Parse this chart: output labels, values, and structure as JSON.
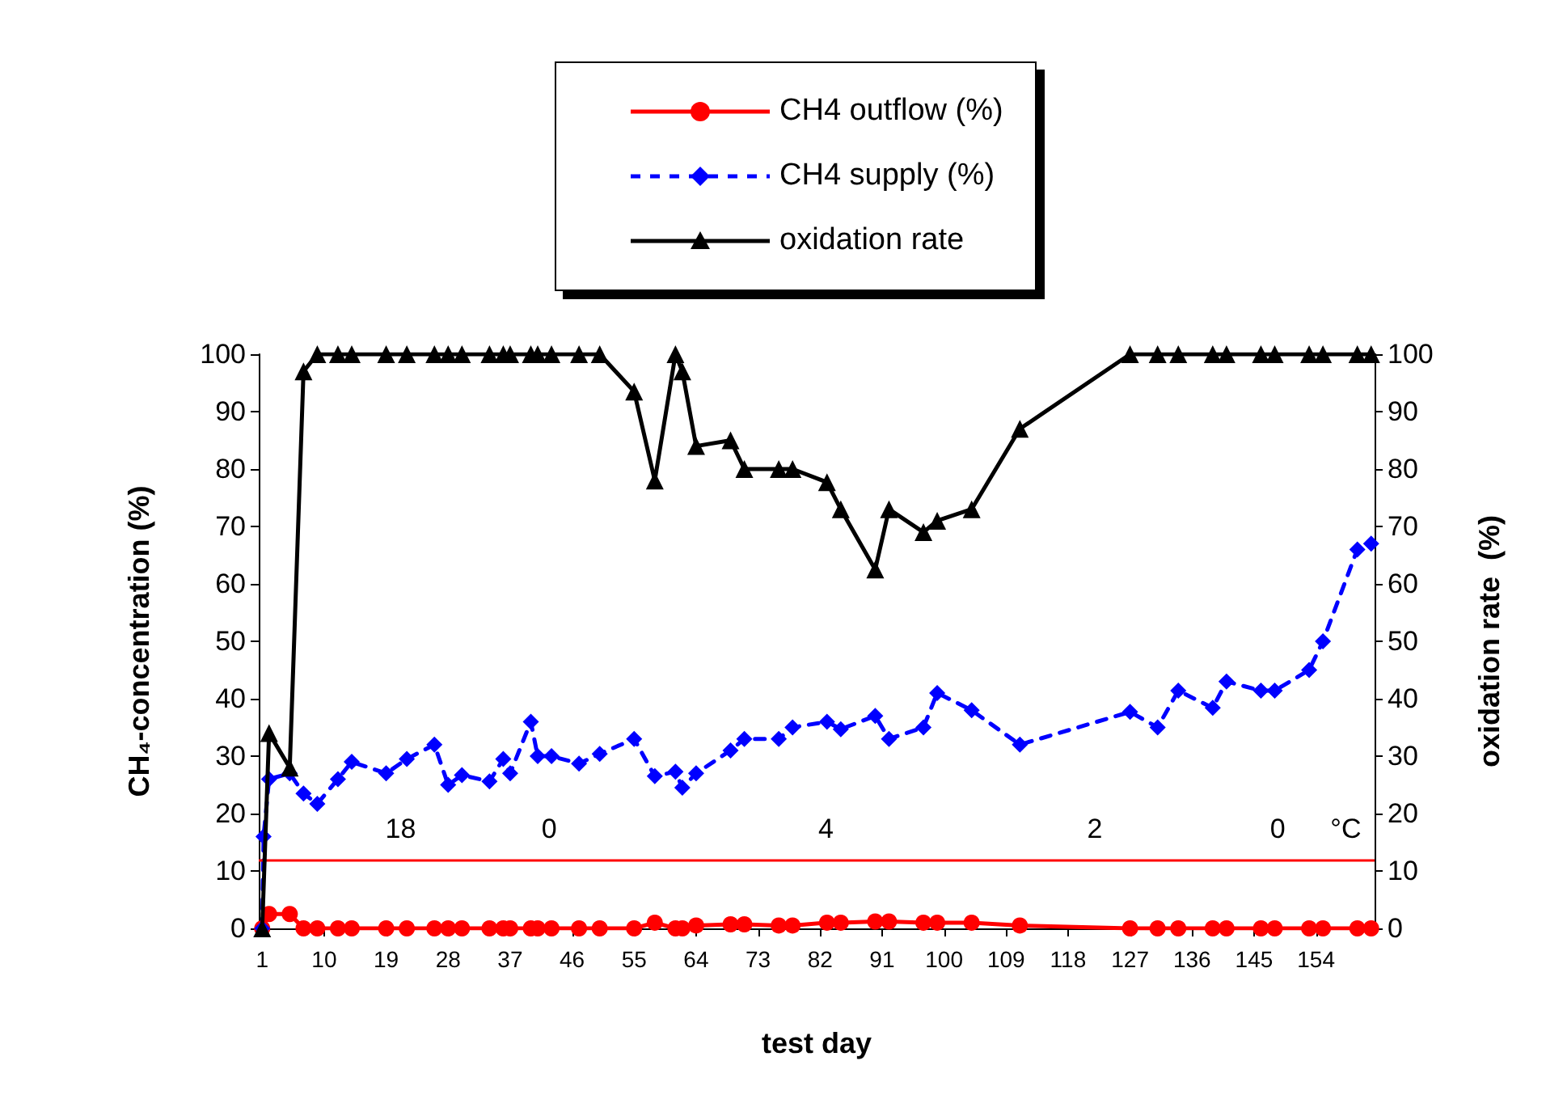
{
  "chart_data": {
    "type": "line",
    "xlabel": "test day",
    "ylabel": "CH₄-concentration (%)",
    "y2label": "oxidation rate  (%)",
    "xlim": [
      0.5,
      162.5
    ],
    "xticks": [
      1,
      10,
      19,
      28,
      37,
      46,
      55,
      64,
      73,
      82,
      91,
      100,
      109,
      118,
      127,
      136,
      145,
      154
    ],
    "ylim": [
      0,
      100
    ],
    "yticks": [
      0,
      10,
      20,
      30,
      40,
      50,
      60,
      70,
      80,
      90,
      100
    ],
    "y2lim": [
      0,
      100
    ],
    "y2ticks": [
      0,
      10,
      20,
      30,
      40,
      50,
      60,
      70,
      80,
      90,
      100
    ],
    "grid": false,
    "legend": "top",
    "series": [
      {
        "name": "CH4 outflow (%)",
        "color": "#ff0000",
        "marker": "circle",
        "line_style": "solid",
        "x": [
          1,
          2,
          5,
          7,
          9,
          12,
          14,
          19,
          22,
          26,
          28,
          30,
          34,
          36,
          37,
          40,
          41,
          43,
          47,
          50,
          55,
          58,
          61,
          62,
          64,
          69,
          71,
          76,
          78,
          83,
          85,
          90,
          92,
          97,
          99,
          104,
          111,
          127,
          131,
          134,
          139,
          141,
          146,
          148,
          153,
          155,
          160,
          162
        ],
        "values": [
          0,
          2.5,
          2.5,
          0,
          0,
          0,
          0,
          0,
          0,
          0,
          0,
          0,
          0,
          0,
          0,
          0,
          0,
          0,
          0,
          0,
          0,
          1,
          0,
          0,
          0.5,
          0.7,
          0.7,
          0.5,
          0.5,
          1,
          1,
          1.2,
          1.2,
          1,
          1,
          1,
          0.5,
          0,
          0,
          0,
          0,
          0,
          0,
          0,
          0,
          0,
          0,
          0
        ]
      },
      {
        "name": "CH4 supply (%)",
        "color": "#0000ff",
        "marker": "diamond",
        "line_style": "dashed",
        "x": [
          1,
          1.2,
          2,
          5,
          7,
          9,
          12,
          14,
          19,
          22,
          26,
          28,
          30,
          34,
          36,
          37,
          40,
          41,
          43,
          47,
          50,
          55,
          58,
          61,
          62,
          64,
          69,
          71,
          76,
          78,
          83,
          85,
          90,
          92,
          97,
          99,
          104,
          111,
          127,
          131,
          134,
          139,
          141,
          146,
          148,
          153,
          155,
          160,
          162
        ],
        "values": [
          0,
          16,
          26,
          27,
          23.5,
          21.7,
          26,
          29,
          27,
          29.5,
          32,
          25,
          26.7,
          25.6,
          29.5,
          27,
          36,
          30,
          30,
          28.7,
          30.4,
          33,
          26.5,
          27.3,
          24.5,
          27,
          31,
          33,
          33,
          35,
          36,
          34.7,
          37,
          33,
          35,
          41,
          38,
          32,
          37.7,
          35,
          41.4,
          38.4,
          43,
          41.4,
          41.4,
          45,
          50,
          66,
          67
        ]
      },
      {
        "name": "oxidation rate",
        "color": "#000000",
        "marker": "triangle",
        "line_style": "solid",
        "axis": "y2",
        "x": [
          1,
          2,
          5,
          7,
          9,
          12,
          14,
          19,
          22,
          26,
          28,
          30,
          34,
          36,
          37,
          40,
          41,
          43,
          47,
          50,
          55,
          58,
          61,
          62,
          64,
          69,
          71,
          76,
          78,
          83,
          85,
          90,
          92,
          97,
          99,
          104,
          111,
          127,
          131,
          134,
          139,
          141,
          146,
          148,
          153,
          155,
          160,
          162
        ],
        "values": [
          0,
          34,
          28,
          97,
          100,
          100,
          100,
          100,
          100,
          100,
          100,
          100,
          100,
          100,
          100,
          100,
          100,
          100,
          100,
          100,
          93.5,
          78,
          100,
          97,
          84,
          85,
          80,
          80,
          80,
          77.7,
          73,
          62.5,
          73,
          69,
          71,
          73,
          87,
          100,
          100,
          100,
          100,
          100,
          100,
          100,
          100,
          100,
          100,
          100
        ]
      }
    ],
    "ref_lines": [
      {
        "axis": "y",
        "value": 12,
        "color": "#ff0000"
      }
    ],
    "annotations": [
      "18",
      "0",
      "4",
      "2",
      "0",
      "°C"
    ]
  }
}
